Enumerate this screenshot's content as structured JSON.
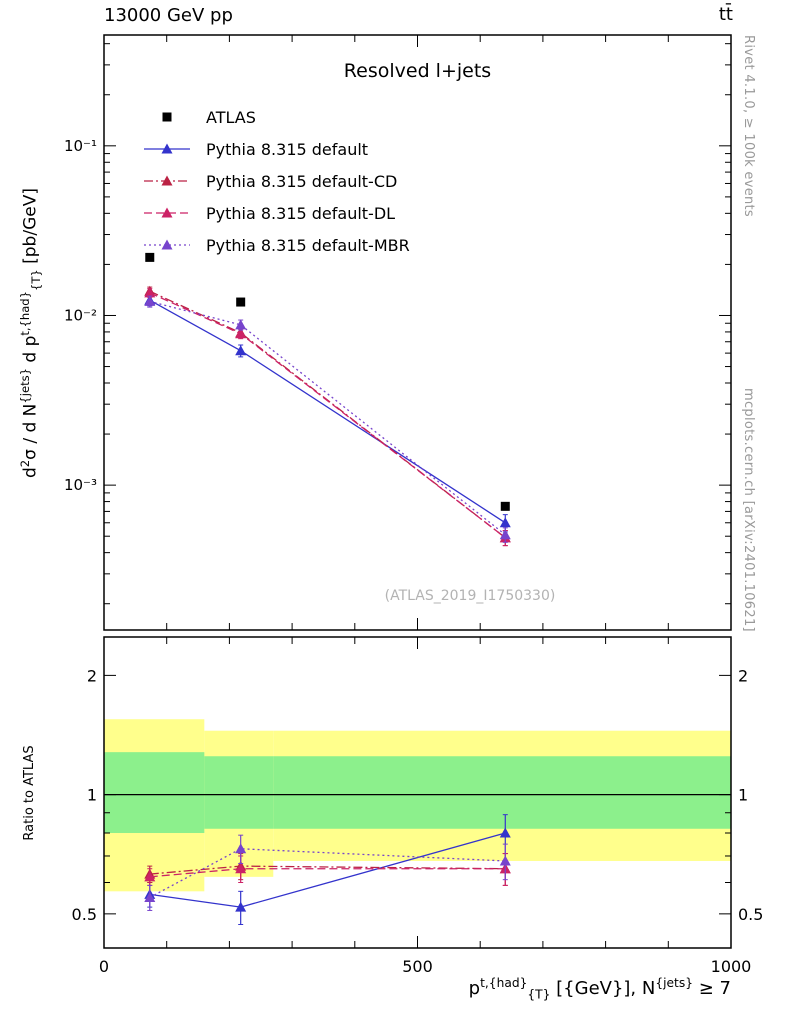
{
  "header": {
    "left": "13000 GeV pp",
    "right": "tt̄"
  },
  "watermarks": {
    "rivet": "Rivet 4.1.0, ≥ 100k events",
    "mcplots": "mcplots.cern.ch [arXiv:2401.10621]",
    "analysis": "(ATLAS_2019_I1750330)"
  },
  "labels": {
    "ratio": "Ratio to ATLAS",
    "ylabel_parts": [
      {
        "text": "d"
      },
      {
        "text": "2",
        "style": "sup"
      },
      {
        "text": "σ / d N"
      },
      {
        "text": "{jets}",
        "style": "sup"
      },
      {
        "text": " d p"
      },
      {
        "text": "t,{had}",
        "style": "sup"
      },
      {
        "text": "{T}",
        "style": "sub"
      },
      {
        "text": " [pb/GeV]"
      }
    ],
    "xlabel_parts": [
      {
        "text": "p"
      },
      {
        "text": "t,{had}",
        "style": "sup"
      },
      {
        "text": "{T}",
        "style": "sub"
      },
      {
        "text": " [{GeV}], N"
      },
      {
        "text": "{jets}",
        "style": "sup"
      },
      {
        "text": " ≥ 7"
      }
    ]
  },
  "chart_data": {
    "type": "line",
    "title": "Resolved l+jets",
    "xlim": [
      0,
      1000
    ],
    "x_minor_step": 100,
    "xticks": [
      {
        "value": 0,
        "label": "0"
      },
      {
        "value": 500,
        "label": "500"
      },
      {
        "value": 1000,
        "label": "1000"
      }
    ],
    "main": {
      "yscale": "log",
      "ylim": [
        0.00014,
        0.45
      ],
      "yticks": [
        {
          "value": 0.1,
          "label": "10⁻¹"
        },
        {
          "value": 0.01,
          "label": "10⁻²"
        },
        {
          "value": 0.001,
          "label": "10⁻³"
        }
      ]
    },
    "ratio": {
      "yscale": "log",
      "ylim": [
        0.41,
        2.5
      ],
      "reference_line": 1,
      "yticks": [
        {
          "value": 2,
          "label": "2"
        },
        {
          "value": 1,
          "label": "1"
        },
        {
          "value": 0.5,
          "label": "0.5"
        }
      ],
      "bands": {
        "yellow": {
          "color": "#ffff8c",
          "bins": [
            {
              "x0": 0,
              "x1": 160,
              "lo": 0.57,
              "hi": 1.55
            },
            {
              "x0": 160,
              "x1": 270,
              "lo": 0.62,
              "hi": 1.45
            },
            {
              "x0": 270,
              "x1": 1000,
              "lo": 0.68,
              "hi": 1.45
            }
          ]
        },
        "green": {
          "color": "#8cf08c",
          "bins": [
            {
              "x0": 0,
              "x1": 160,
              "lo": 0.8,
              "hi": 1.28
            },
            {
              "x0": 160,
              "x1": 270,
              "lo": 0.82,
              "hi": 1.25
            },
            {
              "x0": 270,
              "x1": 1000,
              "lo": 0.82,
              "hi": 1.25
            }
          ]
        }
      }
    },
    "series": [
      {
        "name": "ATLAS",
        "marker": "square",
        "color": "#000000",
        "line": "none",
        "x": [
          73,
          218,
          640
        ],
        "y": [
          0.022,
          0.012,
          0.00075
        ]
      },
      {
        "name": "Pythia 8.315 default",
        "marker": "triangle",
        "color": "#3333cc",
        "line": "solid",
        "x": [
          73,
          218,
          640
        ],
        "y": [
          0.0123,
          0.0062,
          0.0006
        ],
        "y_err": [
          0.0009,
          0.0005,
          7e-05
        ],
        "ratio": [
          0.56,
          0.52,
          0.8
        ],
        "ratio_err": [
          0.04,
          0.05,
          0.09
        ]
      },
      {
        "name": "Pythia 8.315 default-CD",
        "marker": "triangle",
        "color": "#bb2244",
        "line": "dashdot",
        "x": [
          73,
          218,
          640
        ],
        "y": [
          0.0139,
          0.0079,
          0.00049
        ],
        "y_err": [
          0.0008,
          0.0005,
          5e-05
        ],
        "ratio": [
          0.63,
          0.66,
          0.65
        ],
        "ratio_err": [
          0.03,
          0.05,
          0.06
        ]
      },
      {
        "name": "Pythia 8.315 default-DL",
        "marker": "triangle",
        "color": "#cc2266",
        "line": "dashed",
        "x": [
          73,
          218,
          640
        ],
        "y": [
          0.0136,
          0.0078,
          0.00049
        ],
        "y_err": [
          0.0008,
          0.0005,
          5e-05
        ],
        "ratio": [
          0.62,
          0.65,
          0.65
        ],
        "ratio_err": [
          0.03,
          0.05,
          0.06
        ]
      },
      {
        "name": "Pythia 8.315 default-MBR",
        "marker": "triangle",
        "color": "#7744cc",
        "line": "dotted",
        "x": [
          73,
          218,
          640
        ],
        "y": [
          0.0121,
          0.0088,
          0.00051
        ],
        "y_err": [
          0.0009,
          0.0006,
          5e-05
        ],
        "ratio": [
          0.55,
          0.73,
          0.68
        ],
        "ratio_err": [
          0.04,
          0.06,
          0.07
        ]
      }
    ],
    "legend_position": "top-left"
  }
}
